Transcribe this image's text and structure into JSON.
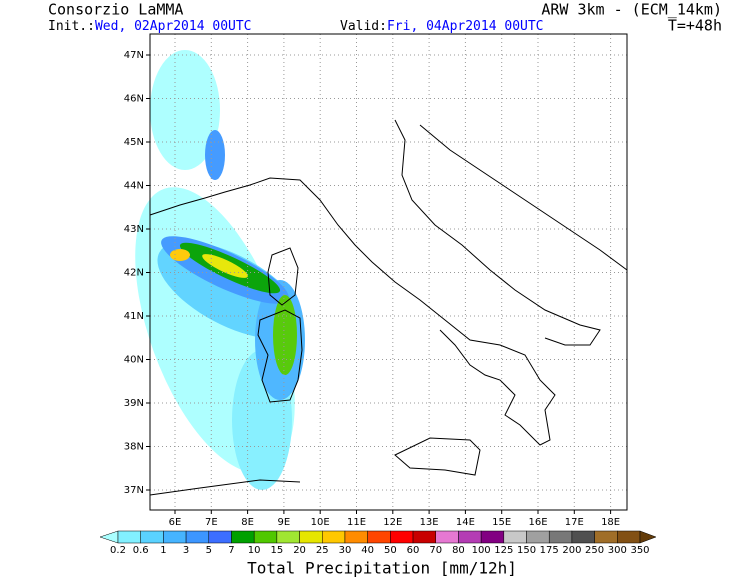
{
  "header": {
    "title": "Consorzio LaMMA",
    "init_label": "Init.:",
    "init_time": "Wed, 02Apr2014 00UTC",
    "valid_label": "Valid:",
    "valid_time": "Fri, 04Apr2014 00UTC",
    "model": "ARW 3km - (ECM_14km)",
    "lead_time": "T=+48h"
  },
  "map": {
    "lat_labels": [
      "47N",
      "46N",
      "45N",
      "44N",
      "43N",
      "42N",
      "41N",
      "40N",
      "39N",
      "38N",
      "37N"
    ],
    "lon_labels": [
      "6E",
      "7E",
      "8E",
      "9E",
      "10E",
      "11E",
      "12E",
      "13E",
      "14E",
      "15E",
      "16E",
      "17E",
      "18E"
    ]
  },
  "colorbar": {
    "labels": [
      0.2,
      0.6,
      1,
      3,
      5,
      7,
      10,
      15,
      20,
      25,
      30,
      40,
      50,
      60,
      70,
      80,
      100,
      125,
      150,
      175,
      200,
      250,
      300,
      350
    ],
    "colors": [
      "#aaffff",
      "#82f0ff",
      "#5ad2ff",
      "#46b4ff",
      "#3c96ff",
      "#3c6eff",
      "#00a000",
      "#50c800",
      "#a0e632",
      "#e6e600",
      "#ffc800",
      "#ff8c00",
      "#ff4600",
      "#ff0000",
      "#c80000",
      "#e678d2",
      "#b43cb4",
      "#820082",
      "#c8c8c8",
      "#a0a0a0",
      "#787878",
      "#505050",
      "#a06e28",
      "#825014",
      "#643c0a"
    ],
    "title": "Total Precipitation [mm/12h]"
  }
}
